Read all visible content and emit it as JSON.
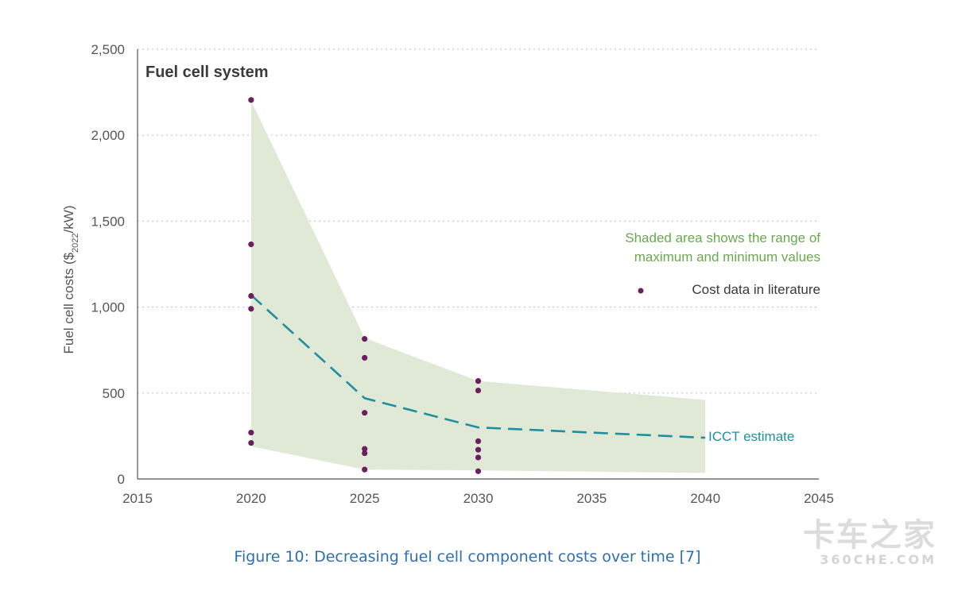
{
  "chart_data": {
    "type": "line",
    "title": "Fuel cell system",
    "ylabel": "Fuel cell costs ($",
    "ylabel_sub": "2022",
    "ylabel_tail": "/kW)",
    "xlim": [
      2015,
      2045
    ],
    "ylim": [
      0,
      2500
    ],
    "x_ticks": [
      "2015",
      "2020",
      "2025",
      "2030",
      "2035",
      "2040",
      "2045"
    ],
    "x_tick_values": [
      2015,
      2020,
      2025,
      2030,
      2035,
      2040,
      2045
    ],
    "y_ticks": [
      "0",
      "500",
      "1,000",
      "1,500",
      "2,000",
      "2,500"
    ],
    "y_tick_values": [
      0,
      500,
      1000,
      1500,
      2000,
      2500
    ],
    "grid": "horizontal-dotted",
    "range_band": {
      "x": [
        2020,
        2025,
        2030,
        2040
      ],
      "upper": [
        2200,
        820,
        570,
        460
      ],
      "lower": [
        190,
        55,
        50,
        35
      ]
    },
    "series": [
      {
        "name": "ICCT estimate",
        "style": "dashed",
        "x": [
          2020,
          2025,
          2030,
          2040
        ],
        "values": [
          1070,
          470,
          300,
          240
        ]
      }
    ],
    "scatter_points": [
      {
        "x": 2020,
        "y": 2205
      },
      {
        "x": 2020,
        "y": 1365
      },
      {
        "x": 2020,
        "y": 1065
      },
      {
        "x": 2020,
        "y": 990
      },
      {
        "x": 2020,
        "y": 270
      },
      {
        "x": 2020,
        "y": 210
      },
      {
        "x": 2025,
        "y": 815
      },
      {
        "x": 2025,
        "y": 705
      },
      {
        "x": 2025,
        "y": 385
      },
      {
        "x": 2025,
        "y": 175
      },
      {
        "x": 2025,
        "y": 150
      },
      {
        "x": 2025,
        "y": 55
      },
      {
        "x": 2030,
        "y": 570
      },
      {
        "x": 2030,
        "y": 515
      },
      {
        "x": 2030,
        "y": 220
      },
      {
        "x": 2030,
        "y": 170
      },
      {
        "x": 2030,
        "y": 125
      },
      {
        "x": 2030,
        "y": 45
      }
    ],
    "annotations": {
      "shaded_note_line1": "Shaded area shows the range of",
      "shaded_note_line2": "maximum and minimum values",
      "legend_points": "Cost data in literature",
      "estimate_label": "ICCT estimate"
    },
    "colors": {
      "band": "#e0e9d6",
      "line": "#1f8fa0",
      "points": "#6b1f5f",
      "note": "#6aa84f",
      "axis": "#555555",
      "grid": "#c8c8c8"
    }
  },
  "caption": "Figure 10: Decreasing fuel cell component costs over time [7]",
  "watermark": {
    "line1": "卡车之家",
    "line2": "360CHE.COM"
  }
}
